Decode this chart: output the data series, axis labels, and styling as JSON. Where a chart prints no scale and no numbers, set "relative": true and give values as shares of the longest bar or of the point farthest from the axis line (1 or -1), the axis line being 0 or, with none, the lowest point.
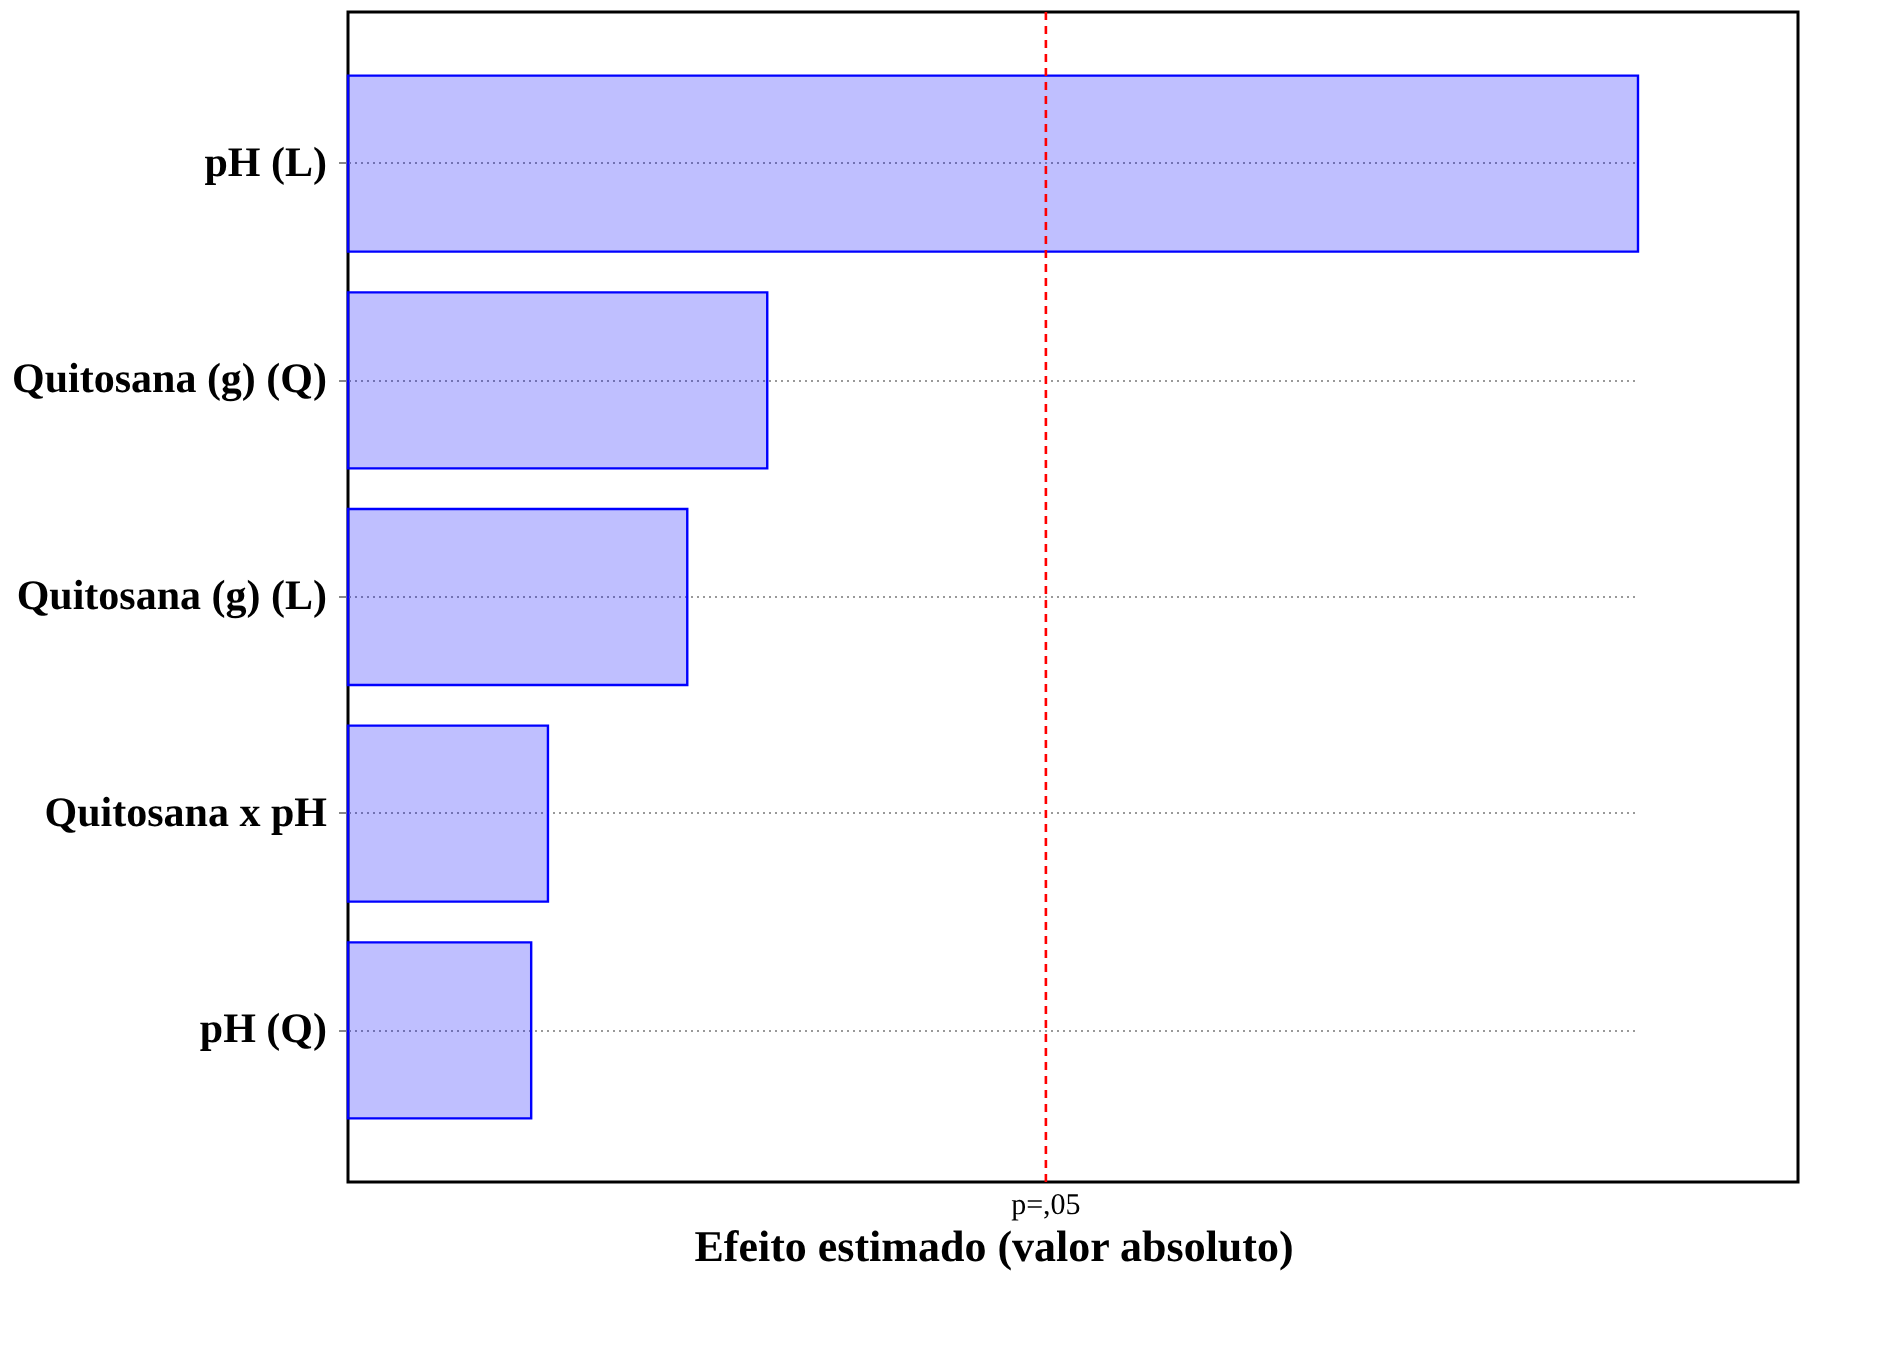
{
  "chart_data": {
    "type": "bar",
    "orientation": "horizontal",
    "relative": true,
    "categories": [
      "pH (L)",
      "Quitosana (g) (Q)",
      "Quitosana (g) (L)",
      "Quitosana x pH",
      "pH (Q)"
    ],
    "series": [
      {
        "color": "#0000ff",
        "values": [
          1,
          0.325,
          0.263,
          0.155,
          0.142
        ]
      }
    ],
    "xlabel": "Efeito estimado (valor absoluto)",
    "ref_lines": [
      {
        "axis": "x",
        "value": 0.541,
        "label": "p=,05",
        "color": "#ff0000",
        "line_style": "dashed"
      }
    ],
    "grid": "y"
  }
}
